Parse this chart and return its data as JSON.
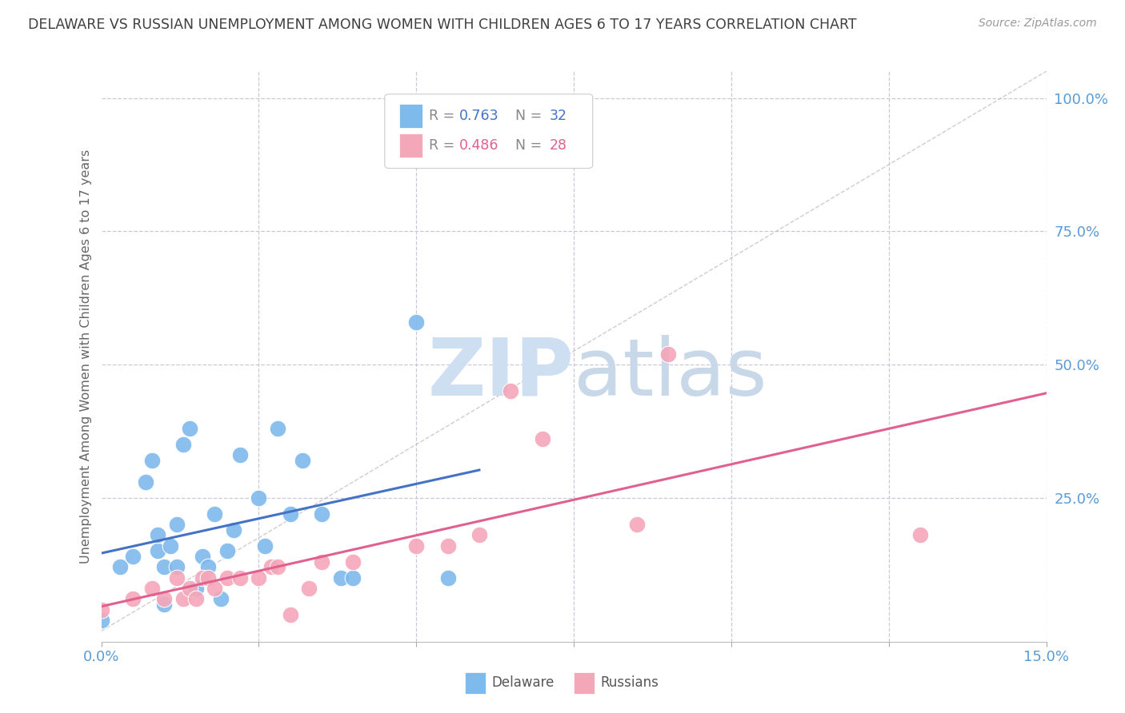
{
  "title": "DELAWARE VS RUSSIAN UNEMPLOYMENT AMONG WOMEN WITH CHILDREN AGES 6 TO 17 YEARS CORRELATION CHART",
  "source": "Source: ZipAtlas.com",
  "ylabel": "Unemployment Among Women with Children Ages 6 to 17 years",
  "xlim": [
    0.0,
    0.15
  ],
  "ylim": [
    -0.02,
    1.05
  ],
  "xticks": [
    0.0,
    0.025,
    0.05,
    0.075,
    0.1,
    0.125,
    0.15
  ],
  "xticklabels": [
    "0.0%",
    "",
    "",
    "",
    "",
    "",
    "15.0%"
  ],
  "yticks_right": [
    0.25,
    0.5,
    0.75,
    1.0
  ],
  "yticklabels_right": [
    "25.0%",
    "50.0%",
    "75.0%",
    "100.0%"
  ],
  "delaware_R": "0.763",
  "delaware_N": "32",
  "russians_R": "0.486",
  "russians_N": "28",
  "delaware_color": "#7fbaed",
  "russians_color": "#f4a7b9",
  "delaware_line_color": "#4472c4",
  "russians_line_color": "#e06090",
  "diagonal_color": "#c0c0c8",
  "background_color": "#ffffff",
  "grid_color": "#c8c8d8",
  "title_color": "#404040",
  "axis_label_color": "#5b9bd5",
  "ylabel_color": "#666666",
  "legend_color_delaware": "#4472c4",
  "legend_color_russians": "#e06090",
  "watermark_color": "#dce8f5",
  "source_color": "#999999",
  "delaware_x": [
    0.0,
    0.003,
    0.005,
    0.007,
    0.008,
    0.009,
    0.009,
    0.01,
    0.01,
    0.011,
    0.012,
    0.012,
    0.013,
    0.014,
    0.015,
    0.016,
    0.017,
    0.018,
    0.019,
    0.02,
    0.021,
    0.022,
    0.025,
    0.026,
    0.028,
    0.03,
    0.032,
    0.035,
    0.038,
    0.04,
    0.05,
    0.055
  ],
  "delaware_y": [
    0.02,
    0.12,
    0.14,
    0.28,
    0.32,
    0.15,
    0.18,
    0.05,
    0.12,
    0.16,
    0.12,
    0.2,
    0.35,
    0.38,
    0.08,
    0.14,
    0.12,
    0.22,
    0.06,
    0.15,
    0.19,
    0.33,
    0.25,
    0.16,
    0.38,
    0.22,
    0.32,
    0.22,
    0.1,
    0.1,
    0.58,
    0.1
  ],
  "russians_x": [
    0.0,
    0.005,
    0.008,
    0.01,
    0.012,
    0.013,
    0.014,
    0.015,
    0.016,
    0.017,
    0.018,
    0.02,
    0.022,
    0.025,
    0.027,
    0.028,
    0.03,
    0.033,
    0.035,
    0.04,
    0.05,
    0.055,
    0.06,
    0.065,
    0.07,
    0.085,
    0.09,
    0.13
  ],
  "russians_y": [
    0.04,
    0.06,
    0.08,
    0.06,
    0.1,
    0.06,
    0.08,
    0.06,
    0.1,
    0.1,
    0.08,
    0.1,
    0.1,
    0.1,
    0.12,
    0.12,
    0.03,
    0.08,
    0.13,
    0.13,
    0.16,
    0.16,
    0.18,
    0.45,
    0.36,
    0.2,
    0.52,
    0.18
  ]
}
